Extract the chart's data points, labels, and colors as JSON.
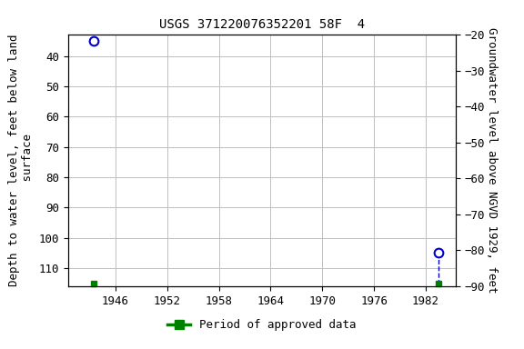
{
  "title": "USGS 371220076352201 58F  4",
  "point1_x": 1943.5,
  "point1_y_depth": 35,
  "point2_x": 1983.5,
  "point2_y_depth": 105,
  "point2b_y_depth": 115,
  "green_square1_x": 1943.5,
  "green_square1_y_depth": 115,
  "green_square2_x": 1983.5,
  "green_square2_y_depth": 115,
  "xlim": [
    1940.5,
    1985.5
  ],
  "ylim_top": 33,
  "ylim_bottom": 116,
  "yticks_depth": [
    40,
    50,
    60,
    70,
    80,
    90,
    100,
    110
  ],
  "ylim_ngvd_top": -20,
  "ylim_ngvd_bottom": -90,
  "yticks_ngvd": [
    -20,
    -30,
    -40,
    -50,
    -60,
    -70,
    -80,
    -90
  ],
  "xticks": [
    1946,
    1952,
    1958,
    1964,
    1970,
    1976,
    1982
  ],
  "ylabel_left": "Depth to water level, feet below land\n surface",
  "ylabel_right": "Groundwater level above NGVD 1929, feet",
  "legend_label": "Period of approved data",
  "point_color": "#0000cc",
  "point_facecolor": "#ffffff",
  "green_color": "#008000",
  "dashed_line_color": "#0000cc",
  "grid_color": "#c0c0c0",
  "bg_color": "#ffffff",
  "title_fontsize": 10,
  "axis_label_fontsize": 9,
  "tick_fontsize": 9,
  "legend_fontsize": 9
}
